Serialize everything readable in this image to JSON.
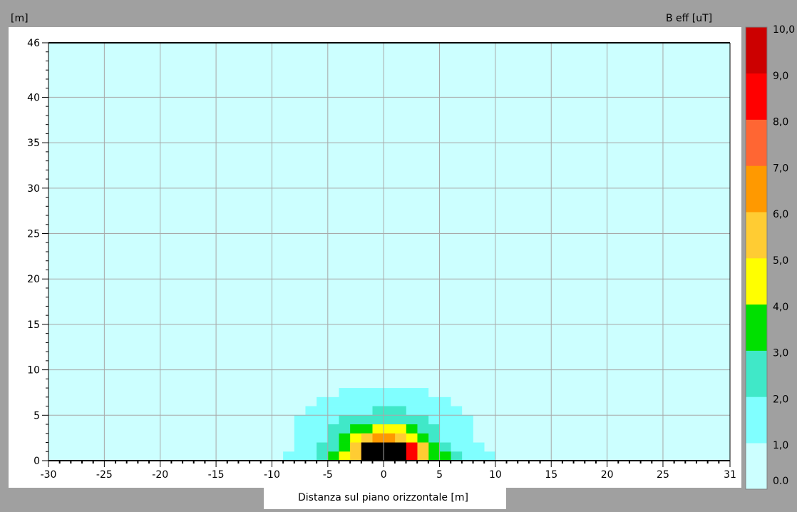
{
  "window": {
    "top_left_label": "[m]",
    "top_right_label": "B eff [uT]",
    "x_axis_title": "Distanza sul piano orizzontale [m]"
  },
  "colors": {
    "frame": "#a0a0a0",
    "plot_bg": "#ffffff",
    "grid": "#a8a8a8"
  },
  "chart_data": {
    "type": "heatmap",
    "title": "",
    "xlabel": "Distanza sul piano orizzontale [m]",
    "ylabel": "[m]",
    "colorbar_label": "B eff [uT]",
    "xlim": [
      -30,
      31
    ],
    "ylim": [
      0,
      46
    ],
    "x_ticks": [
      -30,
      -25,
      -20,
      -15,
      -10,
      -5,
      0,
      5,
      10,
      15,
      20,
      25,
      31
    ],
    "y_ticks": [
      0,
      5,
      10,
      15,
      20,
      25,
      30,
      35,
      40,
      46
    ],
    "grid": true,
    "cell_width_m": 1,
    "cell_height_m": 1,
    "colorbar": {
      "tick_labels": [
        "10,0",
        "9,0",
        "8,0",
        "7,0",
        "6,0",
        "5,0",
        "4,0",
        "3,0",
        "2,0",
        "1,0",
        "0.0"
      ],
      "bands": [
        {
          "from": 0,
          "to": 1,
          "color": "#ccffff"
        },
        {
          "from": 1,
          "to": 2,
          "color": "#80ffff"
        },
        {
          "from": 2,
          "to": 3,
          "color": "#40e8c8"
        },
        {
          "from": 3,
          "to": 4,
          "color": "#00e000"
        },
        {
          "from": 4,
          "to": 5,
          "color": "#ffff00"
        },
        {
          "from": 5,
          "to": 6,
          "color": "#ffcc33"
        },
        {
          "from": 6,
          "to": 7,
          "color": "#ff9900"
        },
        {
          "from": 7,
          "to": 8,
          "color": "#ff6633"
        },
        {
          "from": 8,
          "to": 9,
          "color": "#ff0000"
        },
        {
          "from": 9,
          "to": 10,
          "color": "#cc0000"
        }
      ],
      "over_color": "#000000"
    },
    "background_value": 0.5,
    "regions": [
      {
        "y": [
          7,
          8
        ],
        "x": [
          -4,
          4
        ],
        "value": 1.5
      },
      {
        "y": [
          6,
          7
        ],
        "x": [
          -6,
          6
        ],
        "value": 1.5
      },
      {
        "y": [
          5,
          6
        ],
        "x": [
          -7,
          7
        ],
        "value": 1.5
      },
      {
        "y": [
          4,
          5
        ],
        "x": [
          -8,
          8
        ],
        "value": 1.5
      },
      {
        "y": [
          3,
          4
        ],
        "x": [
          -8,
          8
        ],
        "value": 1.5
      },
      {
        "y": [
          2,
          3
        ],
        "x": [
          -8,
          8
        ],
        "value": 1.5
      },
      {
        "y": [
          1,
          2
        ],
        "x": [
          -8,
          9
        ],
        "value": 1.5
      },
      {
        "y": [
          0,
          1
        ],
        "x": [
          -9,
          10
        ],
        "value": 1.5
      },
      {
        "y": [
          5,
          6
        ],
        "x": [
          -1,
          2
        ],
        "value": 2.5
      },
      {
        "y": [
          4,
          5
        ],
        "x": [
          -4,
          4
        ],
        "value": 2.5
      },
      {
        "y": [
          3,
          4
        ],
        "x": [
          -5,
          5
        ],
        "value": 2.5
      },
      {
        "y": [
          2,
          3
        ],
        "x": [
          -5,
          5
        ],
        "value": 2.5
      },
      {
        "y": [
          1,
          2
        ],
        "x": [
          -6,
          6
        ],
        "value": 2.5
      },
      {
        "y": [
          0,
          1
        ],
        "x": [
          -6,
          7
        ],
        "value": 2.5
      },
      {
        "y": [
          3,
          4
        ],
        "x": [
          -3,
          3
        ],
        "value": 3.5
      },
      {
        "y": [
          2,
          3
        ],
        "x": [
          -4,
          4
        ],
        "value": 3.5
      },
      {
        "y": [
          1,
          2
        ],
        "x": [
          -4,
          5
        ],
        "value": 3.5
      },
      {
        "y": [
          0,
          1
        ],
        "x": [
          -5,
          6
        ],
        "value": 3.5
      },
      {
        "y": [
          3,
          4
        ],
        "x": [
          -1,
          2
        ],
        "value": 4.5
      },
      {
        "y": [
          2,
          3
        ],
        "x": [
          -3,
          3
        ],
        "value": 4.5
      },
      {
        "y": [
          1,
          2
        ],
        "x": [
          -3,
          4
        ],
        "value": 4.5
      },
      {
        "y": [
          0,
          1
        ],
        "x": [
          -4,
          4
        ],
        "value": 4.5
      },
      {
        "y": [
          2,
          3
        ],
        "x": [
          -2,
          2
        ],
        "value": 5.5
      },
      {
        "y": [
          1,
          2
        ],
        "x": [
          -3,
          4
        ],
        "value": 5.5
      },
      {
        "y": [
          0,
          1
        ],
        "x": [
          -3,
          4
        ],
        "value": 5.5
      },
      {
        "y": [
          2,
          3
        ],
        "x": [
          -1,
          1
        ],
        "value": 6.5
      },
      {
        "y": [
          1,
          2
        ],
        "x": [
          -2,
          3
        ],
        "value": 8.5
      },
      {
        "y": [
          0,
          1
        ],
        "x": [
          -2,
          3
        ],
        "value": 8.5
      },
      {
        "y": [
          0,
          2
        ],
        "x": [
          -2,
          2
        ],
        "value": 11
      }
    ]
  }
}
